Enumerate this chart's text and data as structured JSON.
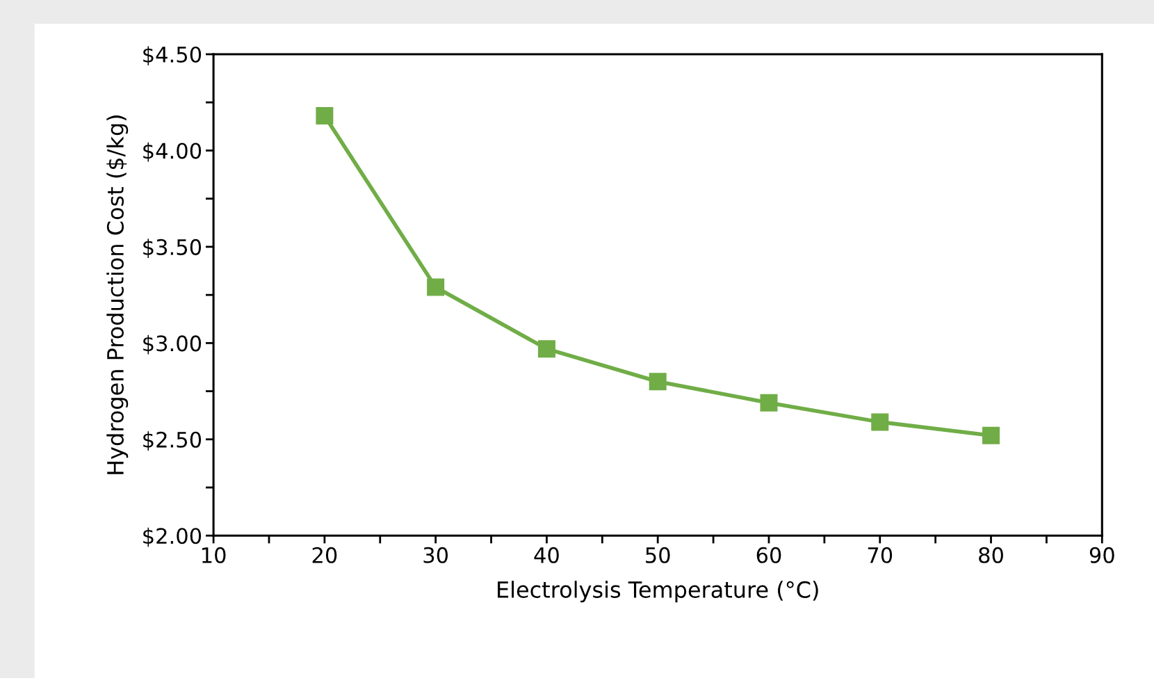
{
  "chart_data": {
    "type": "line",
    "xlabel": "Electrolysis Temperature (°C)",
    "ylabel": "Hydrogen Production Cost ($/kg)",
    "x": [
      20,
      30,
      40,
      50,
      60,
      70,
      80
    ],
    "series": [
      {
        "color": "#70ad47",
        "values": [
          4.18,
          3.29,
          2.97,
          2.8,
          2.69,
          2.59,
          2.52
        ]
      }
    ],
    "xlim": [
      10,
      90
    ],
    "xticks": [
      10,
      {
        "value": 15,
        "label": null
      },
      20,
      {
        "value": 25,
        "label": null
      },
      30,
      {
        "value": 35,
        "label": null
      },
      40,
      {
        "value": 45,
        "label": null
      },
      50,
      {
        "value": 55,
        "label": null
      },
      60,
      {
        "value": 65,
        "label": null
      },
      70,
      {
        "value": 75,
        "label": null
      },
      80,
      {
        "value": 85,
        "label": null
      },
      90
    ],
    "ylim": [
      2.0,
      4.5
    ],
    "yticks": [
      {
        "value": 2.0,
        "label": "$2.00"
      },
      {
        "value": 2.25,
        "label": null
      },
      {
        "value": 2.5,
        "label": "$2.50"
      },
      {
        "value": 2.75,
        "label": null
      },
      {
        "value": 3.0,
        "label": "$3.00"
      },
      {
        "value": 3.25,
        "label": null
      },
      {
        "value": 3.5,
        "label": "$3.50"
      },
      {
        "value": 3.75,
        "label": null
      },
      {
        "value": 4.0,
        "label": "$4.00"
      },
      {
        "value": 4.25,
        "label": null
      },
      {
        "value": 4.5,
        "label": "$4.50"
      }
    ],
    "marker": "square",
    "line_style": "solid",
    "grid": false,
    "legend": false
  }
}
